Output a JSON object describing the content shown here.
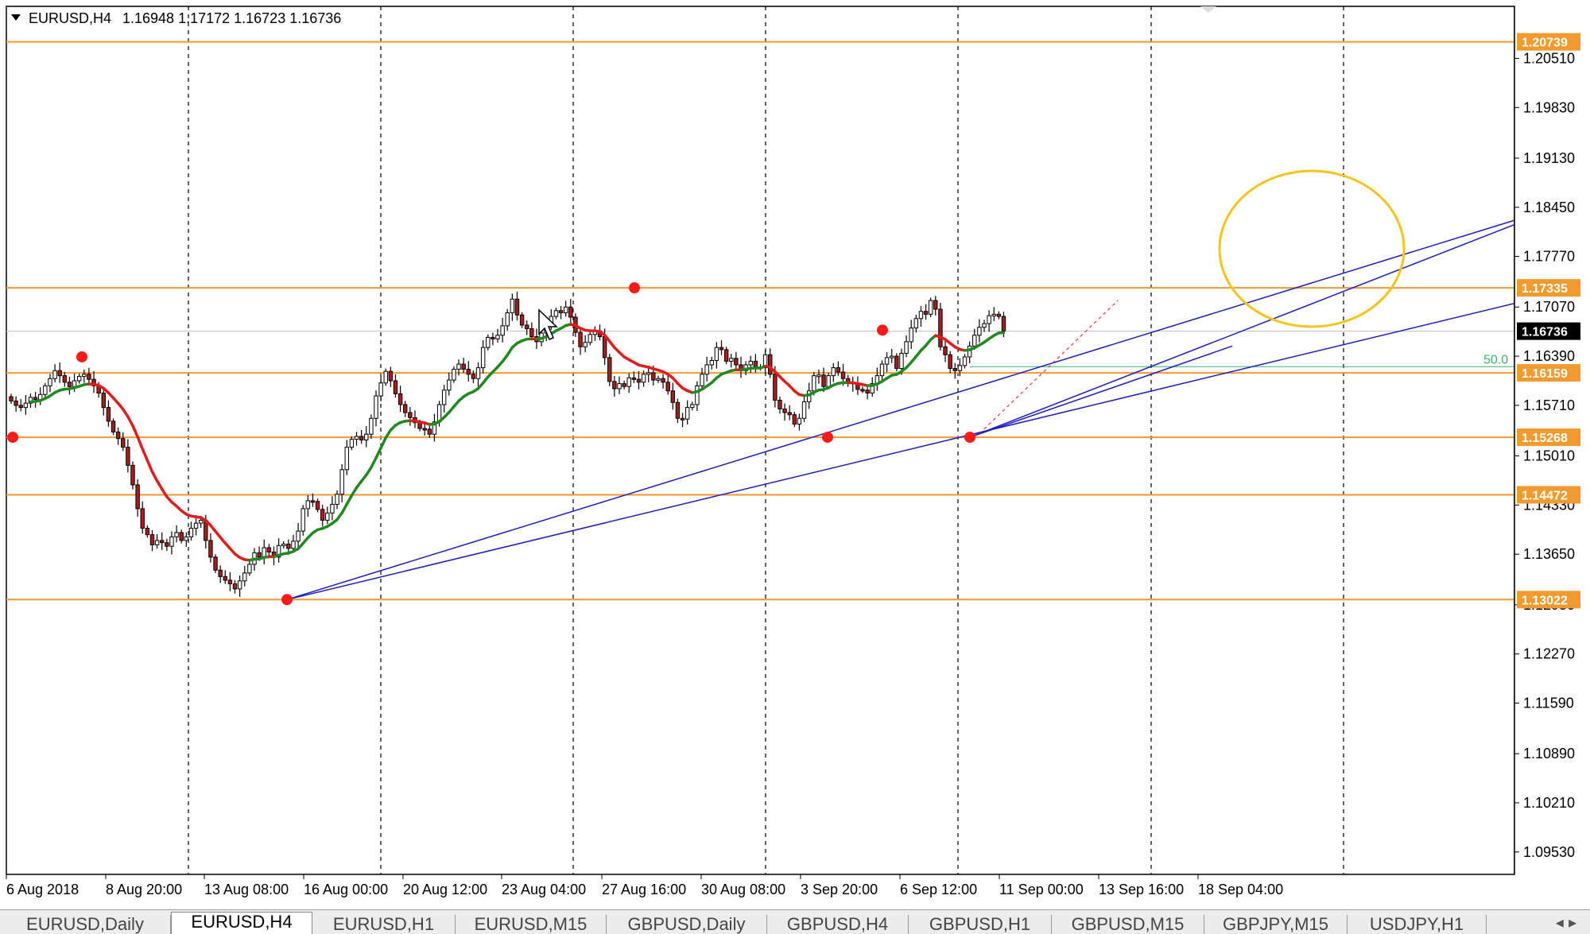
{
  "header": {
    "symbol": "EURUSD,H4",
    "ohlc": "1.16948 1.17172 1.16723 1.16736",
    "menu_icon": "triangle-down-icon"
  },
  "chart_data": {
    "type": "candlestick",
    "symbol": "EURUSD",
    "timeframe": "H4",
    "ylim": [
      1.0922,
      1.2123
    ],
    "y_ticks": [
      "1.20510",
      "1.19830",
      "1.19130",
      "1.18450",
      "1.17770",
      "1.17070",
      "1.16390",
      "1.15710",
      "1.15010",
      "1.14330",
      "1.13650",
      "1.12950",
      "1.12270",
      "1.11590",
      "1.10890",
      "1.10210",
      "1.09530"
    ],
    "x_ticks": [
      "6 Aug 2018",
      "8 Aug 20:00",
      "13 Aug 08:00",
      "16 Aug 00:00",
      "20 Aug 12:00",
      "23 Aug 04:00",
      "27 Aug 16:00",
      "30 Aug 08:00",
      "3 Sep 20:00",
      "6 Sep 12:00",
      "11 Sep 00:00",
      "13 Sep 16:00",
      "18 Sep 04:00"
    ],
    "horizontal_levels": [
      {
        "value": 1.20739,
        "label": "1.20739"
      },
      {
        "value": 1.17335,
        "label": "1.17335"
      },
      {
        "value": 1.16159,
        "label": "1.16159"
      },
      {
        "value": 1.15268,
        "label": "1.15268"
      },
      {
        "value": 1.14472,
        "label": "1.14472"
      },
      {
        "value": 1.13022,
        "label": "1.13022"
      }
    ],
    "current_price": "1.16736",
    "fib_label": "50.0",
    "closes": [
      1.1577,
      1.1571,
      1.1568,
      1.1574,
      1.1582,
      1.1579,
      1.1586,
      1.1598,
      1.1608,
      1.1619,
      1.1612,
      1.1603,
      1.1597,
      1.1605,
      1.1611,
      1.1614,
      1.1607,
      1.1598,
      1.1588,
      1.1568,
      1.1549,
      1.1534,
      1.1525,
      1.1513,
      1.1488,
      1.1461,
      1.1428,
      1.1401,
      1.1392,
      1.1378,
      1.1384,
      1.1381,
      1.1376,
      1.1389,
      1.1395,
      1.1384,
      1.1389,
      1.1401,
      1.1408,
      1.1412,
      1.1384,
      1.1361,
      1.1343,
      1.1334,
      1.1329,
      1.1324,
      1.1317,
      1.1328,
      1.1339,
      1.1351,
      1.1367,
      1.1361,
      1.1374,
      1.1368,
      1.1361,
      1.1377,
      1.1379,
      1.1373,
      1.1383,
      1.1397,
      1.1428,
      1.1439,
      1.1438,
      1.1427,
      1.1412,
      1.1422,
      1.1434,
      1.1448,
      1.1482,
      1.1513,
      1.1524,
      1.1528,
      1.1523,
      1.1531,
      1.1553,
      1.1584,
      1.1602,
      1.1618,
      1.1605,
      1.1587,
      1.1572,
      1.1561,
      1.1554,
      1.1547,
      1.1539,
      1.1538,
      1.1531,
      1.1548,
      1.1572,
      1.1592,
      1.1606,
      1.1621,
      1.1628,
      1.1621,
      1.1614,
      1.1608,
      1.1623,
      1.1651,
      1.1665,
      1.1663,
      1.1668,
      1.1681,
      1.1699,
      1.1718,
      1.1696,
      1.1682,
      1.1677,
      1.1666,
      1.1659,
      1.1671,
      1.1683,
      1.1694,
      1.1702,
      1.1699,
      1.1707,
      1.1693,
      1.1672,
      1.1652,
      1.1658,
      1.1669,
      1.1674,
      1.1666,
      1.1637,
      1.1604,
      1.1594,
      1.1601,
      1.1597,
      1.1609,
      1.1607,
      1.1603,
      1.1614,
      1.1616,
      1.1606,
      1.1608,
      1.1603,
      1.1591,
      1.1575,
      1.1553,
      1.1552,
      1.1568,
      1.1572,
      1.1598,
      1.1614,
      1.1627,
      1.1633,
      1.1651,
      1.1648,
      1.1632,
      1.1636,
      1.1627,
      1.1619,
      1.1627,
      1.1632,
      1.1624,
      1.1623,
      1.1641,
      1.1614,
      1.1578,
      1.1566,
      1.1561,
      1.1558,
      1.1545,
      1.1553,
      1.1576,
      1.1591,
      1.1612,
      1.1613,
      1.1597,
      1.1612,
      1.1623,
      1.1617,
      1.1608,
      1.1603,
      1.1601,
      1.1593,
      1.1592,
      1.1588,
      1.1601,
      1.1612,
      1.1628,
      1.1637,
      1.1639,
      1.1622,
      1.1643,
      1.1659,
      1.1678,
      1.1691,
      1.1701,
      1.1697,
      1.1716,
      1.1704,
      1.1652,
      1.1641,
      1.1622,
      1.1619,
      1.1626,
      1.1638,
      1.1653,
      1.1668,
      1.1679,
      1.1684,
      1.1695,
      1.1697,
      1.1694,
      1.1674
    ]
  },
  "tabs": [
    {
      "label": "EURUSD,Daily",
      "active": false
    },
    {
      "label": "EURUSD,H4",
      "active": true
    },
    {
      "label": "EURUSD,H1",
      "active": false
    },
    {
      "label": "EURUSD,M15",
      "active": false
    },
    {
      "label": "GBPUSD,Daily",
      "active": false
    },
    {
      "label": "GBPUSD,H4",
      "active": false
    },
    {
      "label": "GBPUSD,H1",
      "active": false
    },
    {
      "label": "GBPUSD,M15",
      "active": false
    },
    {
      "label": "GBPJPY,M15",
      "active": false
    },
    {
      "label": "USDJPY,H1",
      "active": false
    }
  ],
  "tab_scroll_icons": "left-right-arrows-icon",
  "colors": {
    "level": "#f29a2e",
    "level_tag": "#f29a2e",
    "trendline": "#1c1cc8",
    "ma_down": "#e51a1a",
    "ma_up": "#1f8a1f",
    "candle": "#000000",
    "candle_bull": "#1f3fae",
    "candle_bear": "#b21a1a",
    "swing_dot": "#ff1a1a",
    "ellipse": "#f5c518",
    "fib": "#3cb371"
  }
}
